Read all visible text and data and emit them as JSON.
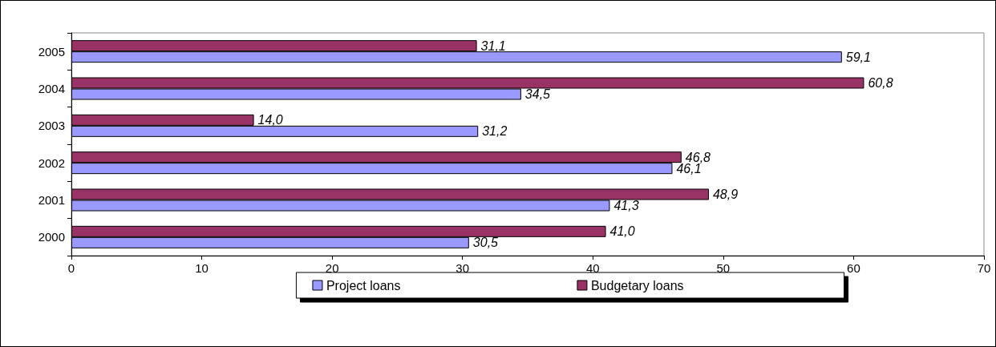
{
  "chart_data": {
    "type": "bar",
    "orientation": "horizontal",
    "categories": [
      "2005",
      "2004",
      "2003",
      "2002",
      "2001",
      "2000"
    ],
    "series": [
      {
        "name": "Project loans",
        "color": "#9999ff",
        "values": [
          59.1,
          34.5,
          31.2,
          46.1,
          41.3,
          30.5
        ],
        "value_labels": [
          "59,1",
          "34,5",
          "31,2",
          "46,1",
          "41,3",
          "30,5"
        ]
      },
      {
        "name": "Budgetary loans",
        "color": "#993366",
        "values": [
          31.1,
          60.8,
          14.0,
          46.8,
          48.9,
          41.0
        ],
        "value_labels": [
          "31,1",
          "60,8",
          "14,0",
          "46,8",
          "48,9",
          "41,0"
        ]
      }
    ],
    "xlim": [
      0,
      70
    ],
    "xticks": [
      0,
      10,
      20,
      30,
      40,
      50,
      60,
      70
    ],
    "grid": false,
    "legend": "bottom"
  }
}
